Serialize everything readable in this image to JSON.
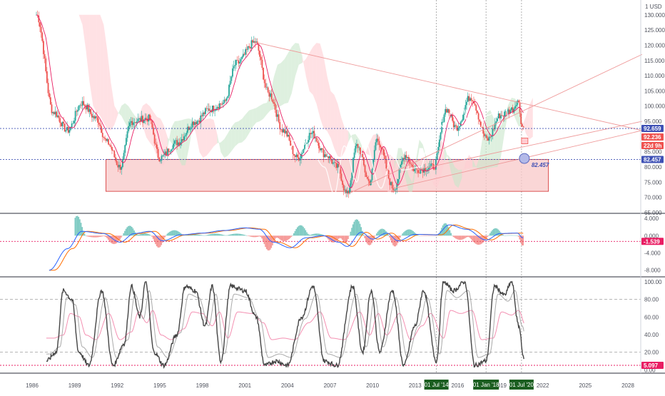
{
  "currency_label": "1 USD",
  "colors": {
    "up": "#26a69a",
    "down": "#ef5350",
    "ma": "#e91e63",
    "zone_fill": "#f8c8c8",
    "zone_stroke": "#d32f2f",
    "cloud_green": "#c8e6c9",
    "cloud_red": "#ffcdd2",
    "macd": "#2962ff",
    "signal": "#ff6d00",
    "stoch_fast": "#444444",
    "stoch_slow": "#aaaaaa",
    "rsi": "#f48fb1",
    "blue_dotted": "#3f51b5",
    "pink_dotted": "#e91e63",
    "date_tag": "#1b5e20"
  },
  "chart_data": [
    {
      "type": "candlestick",
      "name": "price",
      "x_ticks": [
        "1986",
        "1989",
        "1992",
        "1995",
        "1998",
        "2001",
        "2004",
        "2007",
        "2010",
        "2013",
        "2016",
        "2019",
        "2022",
        "2025",
        "2028"
      ],
      "y_ticks": [
        "130.000",
        "125.000",
        "120.000",
        "115.000",
        "110.000",
        "105.000",
        "100.000",
        "95.000",
        "90.000",
        "85.000",
        "80.000",
        "75.000",
        "70.000",
        "65.000"
      ],
      "ylim": [
        65,
        135
      ],
      "xlim": [
        1986,
        2029
      ],
      "key_points": [
        {
          "x": 1986.3,
          "y": 130
        },
        {
          "x": 1987.5,
          "y": 98
        },
        {
          "x": 1988.5,
          "y": 92
        },
        {
          "x": 1989.5,
          "y": 101
        },
        {
          "x": 1990.5,
          "y": 96
        },
        {
          "x": 1991.3,
          "y": 88
        },
        {
          "x": 1992.2,
          "y": 80
        },
        {
          "x": 1993.0,
          "y": 95
        },
        {
          "x": 1994.2,
          "y": 96
        },
        {
          "x": 1995.0,
          "y": 83
        },
        {
          "x": 1996.2,
          "y": 88
        },
        {
          "x": 1997.5,
          "y": 95
        },
        {
          "x": 1998.5,
          "y": 99
        },
        {
          "x": 1999.5,
          "y": 101
        },
        {
          "x": 2000.4,
          "y": 114
        },
        {
          "x": 2001.7,
          "y": 121
        },
        {
          "x": 2002.7,
          "y": 104
        },
        {
          "x": 2003.7,
          "y": 92
        },
        {
          "x": 2004.7,
          "y": 83
        },
        {
          "x": 2005.7,
          "y": 91
        },
        {
          "x": 2006.7,
          "y": 84
        },
        {
          "x": 2007.5,
          "y": 80
        },
        {
          "x": 2008.2,
          "y": 71
        },
        {
          "x": 2008.9,
          "y": 87
        },
        {
          "x": 2009.8,
          "y": 75
        },
        {
          "x": 2010.3,
          "y": 89
        },
        {
          "x": 2011.5,
          "y": 73
        },
        {
          "x": 2012.3,
          "y": 84
        },
        {
          "x": 2013.0,
          "y": 79
        },
        {
          "x": 2014.3,
          "y": 80
        },
        {
          "x": 2015.2,
          "y": 99
        },
        {
          "x": 2015.9,
          "y": 93
        },
        {
          "x": 2016.9,
          "y": 103
        },
        {
          "x": 2018.1,
          "y": 89
        },
        {
          "x": 2019.0,
          "y": 97
        },
        {
          "x": 2019.9,
          "y": 99
        },
        {
          "x": 2020.2,
          "y": 102
        },
        {
          "x": 2020.6,
          "y": 93
        }
      ],
      "price_tags": [
        {
          "value": "92.659",
          "color": "#3f51b5"
        },
        {
          "value": "92.236",
          "color": "#ef5350"
        },
        {
          "value": "22d 9h",
          "color": "#ef5350"
        },
        {
          "value": "82.457",
          "color": "#3f51b5"
        }
      ],
      "annotation": "82.457",
      "support_zone": {
        "x_from": 1991.2,
        "x_to": 2022.4,
        "y_from": 72,
        "y_to": 82.5
      },
      "trend_lines": [
        {
          "from": [
            2001.7,
            121
          ],
          "to": [
            2029,
            92
          ]
        },
        {
          "from": [
            2008.2,
            71
          ],
          "to": [
            2029,
            117
          ]
        },
        {
          "from": [
            2011.5,
            73
          ],
          "to": [
            2029,
            92
          ]
        },
        {
          "from": [
            2013,
            79
          ],
          "to": [
            2029,
            95
          ]
        }
      ]
    },
    {
      "type": "histogram",
      "name": "macd",
      "y_ticks": [
        "4.000",
        "0.000",
        "-4.000",
        "-8.000"
      ],
      "ylim": [
        -9,
        5
      ],
      "value_tag": "-1.539",
      "key_points": [
        {
          "x": 1987.2,
          "y": -8
        },
        {
          "x": 1988.5,
          "y": -3
        },
        {
          "x": 1989.5,
          "y": 1
        },
        {
          "x": 1991.0,
          "y": 0.5
        },
        {
          "x": 1992.2,
          "y": -1.5
        },
        {
          "x": 1993.2,
          "y": 0.5
        },
        {
          "x": 1994.3,
          "y": 1
        },
        {
          "x": 1995.2,
          "y": -1.2
        },
        {
          "x": 1996.5,
          "y": 0.2
        },
        {
          "x": 1998.0,
          "y": 0.6
        },
        {
          "x": 1999.5,
          "y": 1.2
        },
        {
          "x": 2001.0,
          "y": 1.8
        },
        {
          "x": 2002.0,
          "y": 1.5
        },
        {
          "x": 2003.0,
          "y": -1.5
        },
        {
          "x": 2004.2,
          "y": -2.8
        },
        {
          "x": 2005.3,
          "y": -0.5
        },
        {
          "x": 2006.5,
          "y": 0
        },
        {
          "x": 2007.6,
          "y": -1.5
        },
        {
          "x": 2008.2,
          "y": -2.5
        },
        {
          "x": 2009.2,
          "y": 0.8
        },
        {
          "x": 2010.0,
          "y": -0.8
        },
        {
          "x": 2011.0,
          "y": 0.6
        },
        {
          "x": 2011.8,
          "y": -1.2
        },
        {
          "x": 2013.0,
          "y": 0.3
        },
        {
          "x": 2014.5,
          "y": 0.2
        },
        {
          "x": 2015.4,
          "y": 2.5
        },
        {
          "x": 2016.6,
          "y": 1.5
        },
        {
          "x": 2018.0,
          "y": -1
        },
        {
          "x": 2019.0,
          "y": 0.5
        },
        {
          "x": 2020.2,
          "y": 0.6
        },
        {
          "x": 2020.6,
          "y": -0.5
        }
      ]
    },
    {
      "type": "line",
      "name": "stochastic",
      "y_ticks": [
        "100.00",
        "80.00",
        "60.00",
        "40.00",
        "20.00",
        "0.00"
      ],
      "ylim": [
        -5,
        105
      ],
      "value_tag": "5.097",
      "x_tags": [
        "01 Jul '14",
        "01 Jan '18",
        "01 Jul '20"
      ],
      "key_points": [
        {
          "x": 1987.0,
          "y": 10
        },
        {
          "x": 1987.7,
          "y": 20
        },
        {
          "x": 1988.2,
          "y": 90
        },
        {
          "x": 1988.8,
          "y": 80
        },
        {
          "x": 1989.3,
          "y": 20
        },
        {
          "x": 1990.0,
          "y": 5
        },
        {
          "x": 1990.9,
          "y": 90
        },
        {
          "x": 1991.7,
          "y": 5
        },
        {
          "x": 1992.5,
          "y": 30
        },
        {
          "x": 1993.0,
          "y": 95
        },
        {
          "x": 1993.6,
          "y": 60
        },
        {
          "x": 1994.0,
          "y": 100
        },
        {
          "x": 1994.6,
          "y": 20
        },
        {
          "x": 1995.3,
          "y": 5
        },
        {
          "x": 1996.2,
          "y": 40
        },
        {
          "x": 1996.8,
          "y": 95
        },
        {
          "x": 1997.5,
          "y": 90
        },
        {
          "x": 1998.2,
          "y": 50
        },
        {
          "x": 1998.7,
          "y": 95
        },
        {
          "x": 1999.3,
          "y": 10
        },
        {
          "x": 2000.0,
          "y": 95
        },
        {
          "x": 2001.0,
          "y": 90
        },
        {
          "x": 2001.8,
          "y": 60
        },
        {
          "x": 2002.4,
          "y": 5
        },
        {
          "x": 2003.2,
          "y": 10
        },
        {
          "x": 2004.0,
          "y": 5
        },
        {
          "x": 2005.0,
          "y": 60
        },
        {
          "x": 2005.8,
          "y": 95
        },
        {
          "x": 2006.6,
          "y": 10
        },
        {
          "x": 2007.5,
          "y": 5
        },
        {
          "x": 2008.6,
          "y": 95
        },
        {
          "x": 2009.3,
          "y": 20
        },
        {
          "x": 2009.9,
          "y": 90
        },
        {
          "x": 2010.5,
          "y": 20
        },
        {
          "x": 2011.4,
          "y": 90
        },
        {
          "x": 2012.2,
          "y": 5
        },
        {
          "x": 2013.0,
          "y": 50
        },
        {
          "x": 2013.6,
          "y": 90
        },
        {
          "x": 2014.5,
          "y": 10
        },
        {
          "x": 2015.0,
          "y": 100
        },
        {
          "x": 2015.7,
          "y": 90
        },
        {
          "x": 2016.5,
          "y": 100
        },
        {
          "x": 2017.2,
          "y": 5
        },
        {
          "x": 2018.0,
          "y": 10
        },
        {
          "x": 2018.6,
          "y": 95
        },
        {
          "x": 2019.3,
          "y": 85
        },
        {
          "x": 2019.8,
          "y": 100
        },
        {
          "x": 2020.3,
          "y": 50
        },
        {
          "x": 2020.7,
          "y": 10
        }
      ]
    }
  ]
}
